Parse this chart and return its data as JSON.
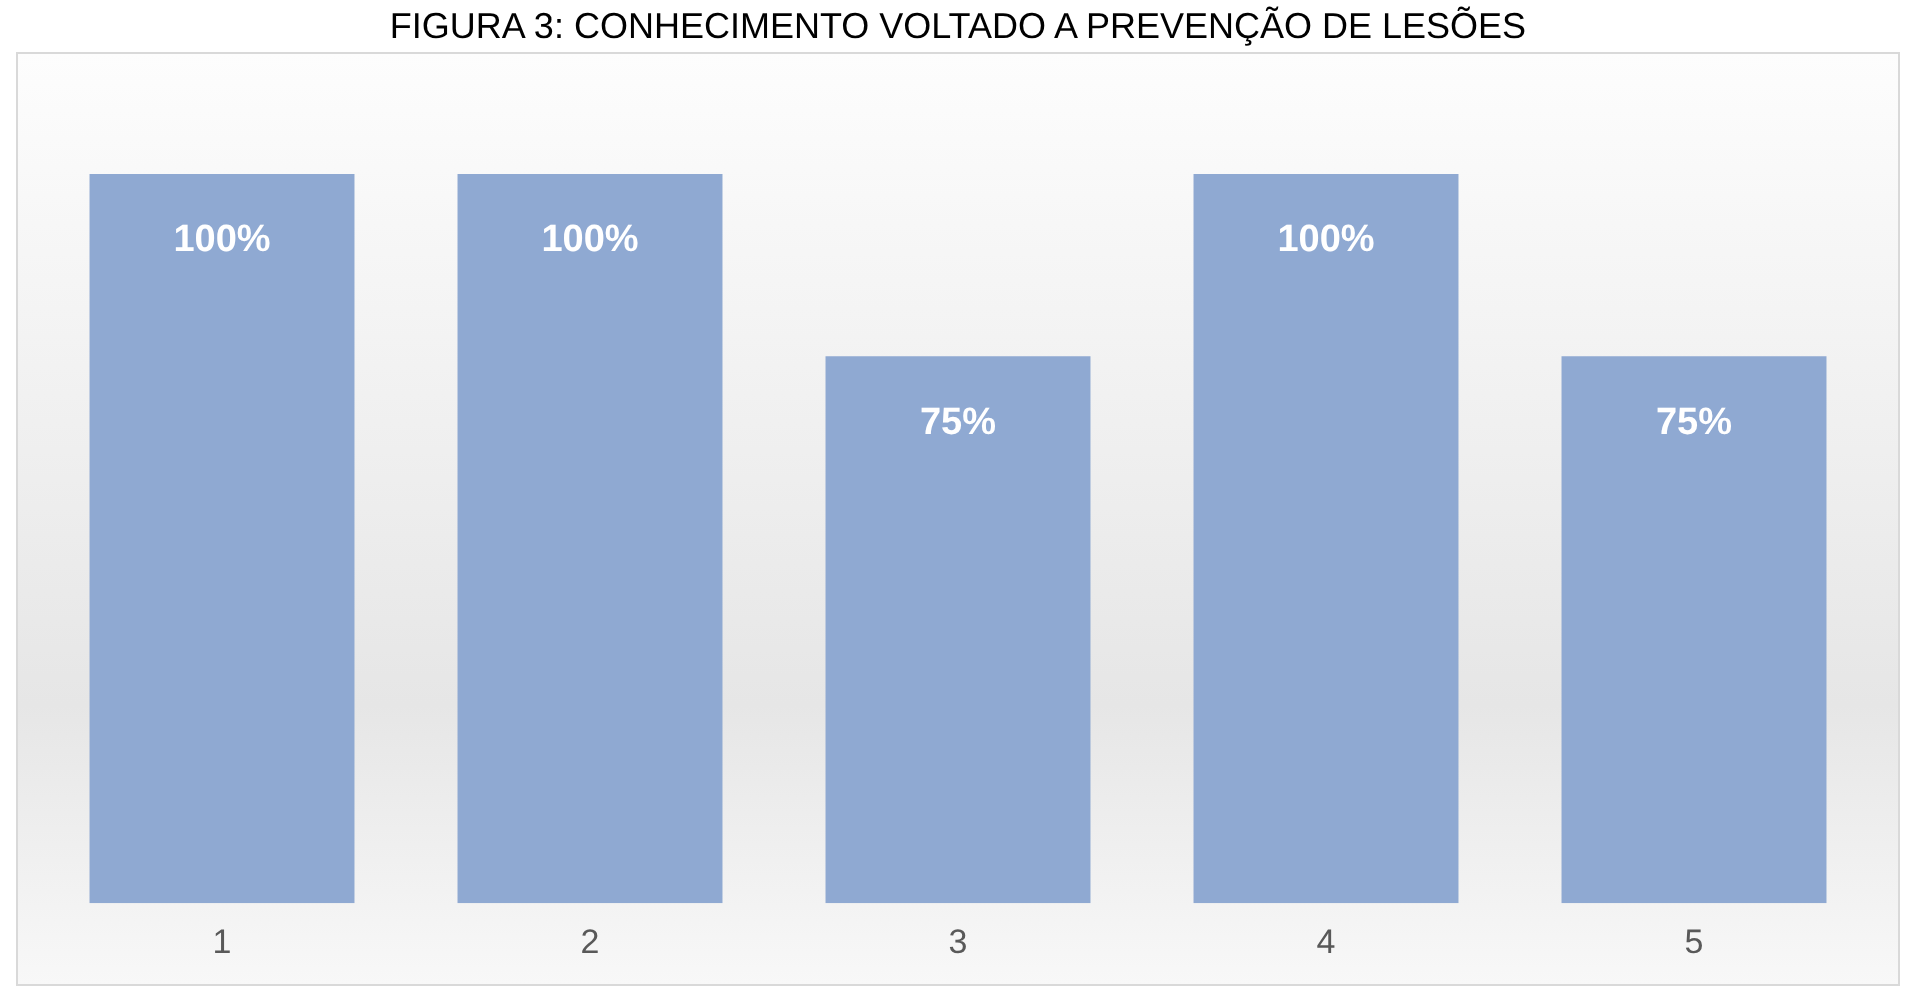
{
  "chart_data": {
    "type": "bar",
    "title": "FIGURA 3: CONHECIMENTO VOLTADO A PREVENÇÃO DE LESÕES",
    "categories": [
      "1",
      "2",
      "3",
      "4",
      "5"
    ],
    "values": [
      100,
      100,
      75,
      100,
      75
    ],
    "value_labels": [
      "100%",
      "100%",
      "75%",
      "100%",
      "75%"
    ],
    "color": "#8fa9d2",
    "tick_labels": "x",
    "grid": false,
    "legend": false
  }
}
